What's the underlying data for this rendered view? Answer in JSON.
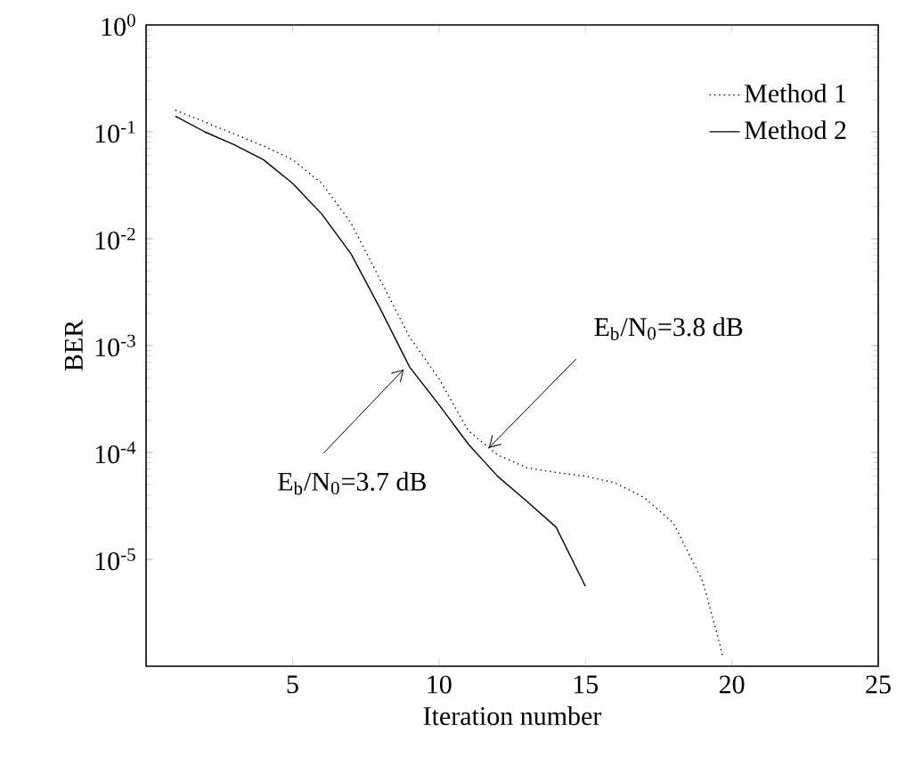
{
  "chart_data": {
    "type": "line",
    "xlabel": "Iteration number",
    "ylabel": "BER",
    "log": "y",
    "xlim": [
      0,
      25
    ],
    "xticks": [
      5,
      10,
      15,
      20,
      25
    ],
    "ylim": [
      1e-06,
      1
    ],
    "yticks": [
      {
        "value": 1e-05,
        "label": "10$^{-5}$"
      },
      {
        "value": 0.0001,
        "label": "10$^{-4}$"
      },
      {
        "value": 0.001,
        "label": "10$^{-3}$"
      },
      {
        "value": 0.01,
        "label": "10$^{-2}$"
      },
      {
        "value": 0.1,
        "label": "10$^{-1}$"
      },
      {
        "value": 1,
        "label": "10$^{0}$"
      }
    ],
    "grid": false,
    "legend": "top right",
    "marker": "none",
    "series": [
      {
        "name": "Method 1",
        "color": "#000000",
        "line_style": "dotted",
        "x": [
          1,
          4,
          5,
          6,
          7,
          8,
          9,
          10,
          11,
          12,
          13,
          14,
          15,
          16,
          17,
          18,
          19,
          19.5,
          19.7
        ],
        "values": [
          0.16,
          0.074,
          0.055,
          0.033,
          0.014,
          0.0041,
          0.0012,
          0.00049,
          0.00016,
          9.5e-05,
          7.2e-05,
          6.5e-05,
          6e-05,
          5.2e-05,
          3.8e-05,
          2.2e-05,
          6.3e-06,
          2e-06,
          1.2e-06
        ]
      },
      {
        "name": "Method 2",
        "color": "#000000",
        "line_style": "solid",
        "x": [
          1,
          2,
          3,
          4,
          5,
          6,
          7,
          8,
          9,
          10,
          11,
          12,
          13,
          14,
          15
        ],
        "values": [
          0.14,
          0.1,
          0.076,
          0.055,
          0.033,
          0.017,
          0.0072,
          0.0022,
          0.00063,
          0.00028,
          0.00012,
          6e-05,
          3.5e-05,
          2e-05,
          5.6e-06
        ]
      }
    ],
    "annotations": [
      {
        "text": "E$_{b}$/N$_{0}$=3.8 dB",
        "x": 11.7,
        "y": 0.00011
      },
      {
        "text": "E$_{b}$/N$_{0}$=3.7 dB",
        "x": 8.8,
        "y": 0.0006
      }
    ]
  }
}
